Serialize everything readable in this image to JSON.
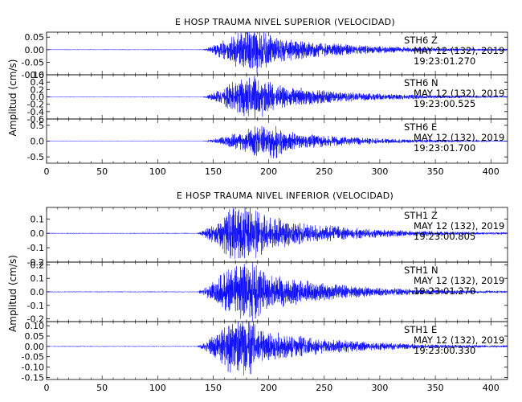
{
  "colors": {
    "trace": "#0000ff",
    "axes": "#000000",
    "background": "#ffffff"
  },
  "chart_data": [
    {
      "type": "line",
      "title": "E HOSP TRAUMA NIVEL SUPERIOR (VELOCIDAD)",
      "ylabel": "Amplitud (cm/s)",
      "xlim": [
        0,
        415
      ],
      "xticks": [
        "0",
        "50",
        "100",
        "150",
        "200",
        "250",
        "300",
        "350",
        "400"
      ],
      "grid": false,
      "panels": [
        {
          "station": "STH6",
          "component": "Z",
          "date": "MAY 12 (132), 2019",
          "time": "19:23:01.270",
          "ylim": [
            -0.1,
            0.07
          ],
          "yticks": [
            "0.05",
            "0.00",
            "-0.05",
            "-0.10"
          ],
          "event_start": 140,
          "peak_time": 175,
          "peak_amplitude": 0.08,
          "event_end": 390
        },
        {
          "station": "STH6",
          "component": "N",
          "date": "MAY 12 (132), 2019",
          "time": "19:23:00.525",
          "ylim": [
            -0.6,
            0.6
          ],
          "yticks": [
            "0.6",
            "0.4",
            "0.2",
            "0.0",
            "-0.2",
            "-0.4",
            "-0.6"
          ],
          "event_start": 140,
          "peak_time": 175,
          "peak_amplitude": 0.5,
          "event_end": 390
        },
        {
          "station": "STH6",
          "component": "E",
          "date": "MAY 12 (132), 2019",
          "time": "19:23:01.700",
          "ylim": [
            -0.7,
            0.7
          ],
          "yticks": [
            "0.5",
            "0.0",
            "-0.5"
          ],
          "event_start": 140,
          "peak_time": 190,
          "peak_amplitude": 0.45,
          "event_end": 390
        }
      ]
    },
    {
      "type": "line",
      "title": "E HOSP TRAUMA NIVEL INFERIOR (VELOCIDAD)",
      "ylabel": "Amplitud (cm/s)",
      "xlim": [
        0,
        415
      ],
      "xticks": [
        "0",
        "50",
        "100",
        "150",
        "200",
        "250",
        "300",
        "350",
        "400"
      ],
      "grid": false,
      "panels": [
        {
          "station": "STH1",
          "component": "Z",
          "date": "MAY 12 (132), 2019",
          "time": "19:23:00.805",
          "ylim": [
            -0.2,
            0.18
          ],
          "yticks": [
            "0.1",
            "0.0",
            "-0.1",
            "-0.2"
          ],
          "event_start": 135,
          "peak_time": 168,
          "peak_amplitude": 0.18,
          "event_end": 380
        },
        {
          "station": "STH1",
          "component": "N",
          "date": "MAY 12 (132), 2019",
          "time": "19:23:01.270",
          "ylim": [
            -0.22,
            0.22
          ],
          "yticks": [
            "0.2",
            "0.1",
            "0.0",
            "-0.1",
            "-0.2"
          ],
          "event_start": 135,
          "peak_time": 168,
          "peak_amplitude": 0.2,
          "event_end": 380
        },
        {
          "station": "STH1",
          "component": "E",
          "date": "MAY 12 (132), 2019",
          "time": "19:23:00.330",
          "ylim": [
            -0.16,
            0.12
          ],
          "yticks": [
            "0.10",
            "0.05",
            "0.00",
            "-0.05",
            "-0.10",
            "-0.15"
          ],
          "event_start": 135,
          "peak_time": 165,
          "peak_amplitude": 0.12,
          "event_end": 380
        }
      ]
    }
  ]
}
